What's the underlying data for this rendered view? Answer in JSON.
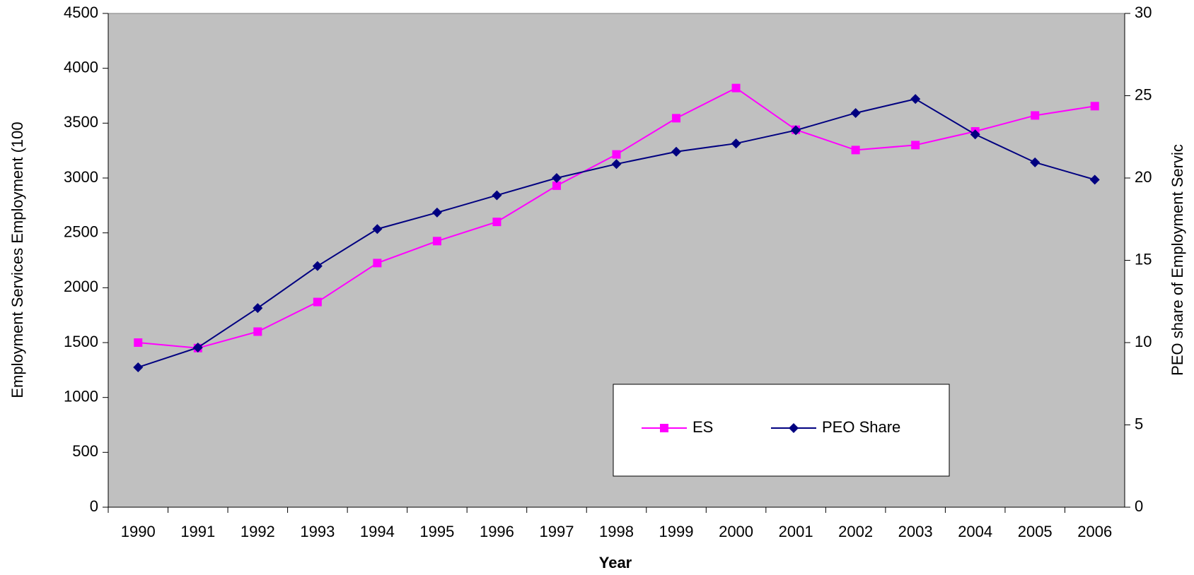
{
  "chart_data": {
    "type": "line",
    "x_label": "Year",
    "y_label": "Employment Services Employment (100",
    "y2_label": "PEO share of Employment Servic",
    "categories": [
      "1990",
      "1991",
      "1992",
      "1993",
      "1994",
      "1995",
      "1996",
      "1997",
      "1998",
      "1999",
      "2000",
      "2001",
      "2002",
      "2003",
      "2004",
      "2005",
      "2006"
    ],
    "series": [
      {
        "name": "ES",
        "color": "#ff00ff",
        "marker": "square",
        "values": [
          1500,
          1450,
          1600,
          1870,
          2225,
          2425,
          2600,
          2930,
          3215,
          3545,
          3820,
          3440,
          3255,
          3300,
          3425,
          3570,
          3655
        ]
      },
      {
        "name": "PEO Share",
        "color": "#000080",
        "marker": "diamond",
        "axis": "y2",
        "values": [
          8.5,
          9.7,
          12.1,
          14.65,
          16.9,
          17.9,
          18.95,
          20.0,
          20.85,
          21.6,
          22.1,
          22.9,
          23.95,
          24.8,
          22.65,
          20.95,
          19.9
        ]
      }
    ],
    "ylim": [
      0,
      4500
    ],
    "yticks": [
      0,
      500,
      1000,
      1500,
      2000,
      2500,
      3000,
      3500,
      4000,
      4500
    ],
    "y2lim": [
      0,
      30
    ],
    "y2ticks": [
      0,
      5,
      10,
      15,
      20,
      25,
      30
    ],
    "legend": "inside-bottom-center"
  }
}
